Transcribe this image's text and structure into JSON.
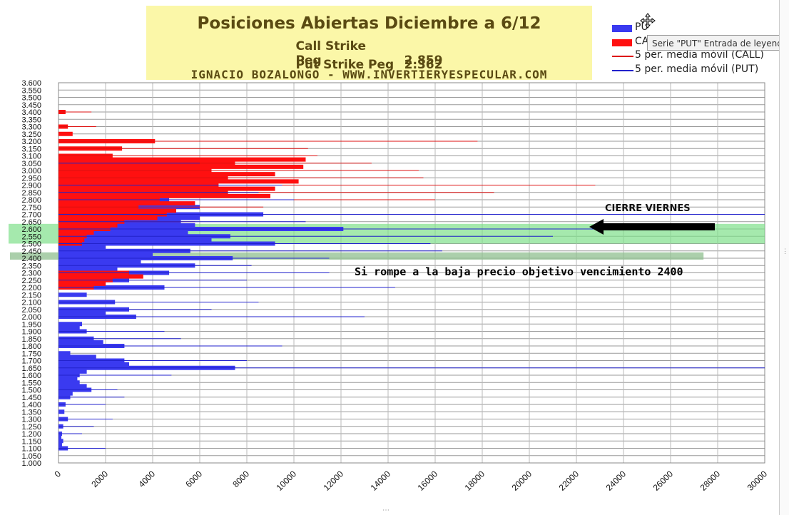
{
  "chart_data": {
    "type": "bar",
    "orientation": "horizontal",
    "title": "Posiciones Abiertas Diciembre a 6/12",
    "call_peg_label": "Call Strike Peg",
    "call_peg_value": "2.859",
    "put_peg_label": "Put Strike Peg",
    "put_peg_value": "2.362",
    "author": "IGNACIO BOZALONGO - WWW.INVERTIERYESPECULAR.COM",
    "xlim": [
      0,
      30000
    ],
    "x_ticks": [
      "0",
      "2000",
      "4000",
      "6000",
      "8000",
      "10000",
      "12000",
      "14000",
      "16000",
      "18000",
      "20000",
      "22000",
      "24000",
      "26000",
      "28000",
      "30000"
    ],
    "ylim": [
      1.0,
      3.6
    ],
    "y_ticks": [
      "3.600",
      "3.550",
      "3.500",
      "3.450",
      "3.400",
      "3.350",
      "3.300",
      "3.250",
      "3.200",
      "3.150",
      "3.100",
      "3.050",
      "3.000",
      "2.950",
      "2.900",
      "2.850",
      "2.800",
      "2.750",
      "2.700",
      "2.650",
      "2.600",
      "2.550",
      "2.500",
      "2.450",
      "2.400",
      "2.350",
      "2.300",
      "2.250",
      "2.200",
      "2.150",
      "2.100",
      "2.050",
      "2.000",
      "1.950",
      "1.900",
      "1.850",
      "1.800",
      "1.750",
      "1.700",
      "1.650",
      "1.600",
      "1.550",
      "1.500",
      "1.450",
      "1.400",
      "1.350",
      "1.300",
      "1.250",
      "1.200",
      "1.150",
      "1.100",
      "1.050",
      "1.000"
    ],
    "grid": true,
    "legend_position": "top-right",
    "legend": [
      "PUT",
      "CALL",
      "5 per. media móvil (CALL)",
      "5 per. media móvil (PUT)"
    ],
    "legend_visible": [
      "PU",
      "CA",
      "5 per. media móvil (CALL)",
      "5 per. media móvil (PUT)"
    ],
    "colors": {
      "put": "#3a3af0",
      "call": "#ff1010",
      "ma_call": "#dd1111",
      "ma_put": "#2222cc",
      "zone": "#7fe08a",
      "zone2": "#8fbf8f"
    },
    "series": [
      {
        "name": "PUT",
        "y": [
          1.1,
          1.125,
          1.15,
          1.175,
          1.2,
          1.25,
          1.3,
          1.35,
          1.4,
          1.45,
          1.475,
          1.5,
          1.525,
          1.55,
          1.575,
          1.6,
          1.625,
          1.65,
          1.675,
          1.7,
          1.725,
          1.75,
          1.8,
          1.825,
          1.85,
          1.9,
          1.925,
          1.95,
          2.0,
          2.025,
          2.05,
          2.1,
          2.15,
          2.2,
          2.225,
          2.25,
          2.275,
          2.3,
          2.325,
          2.35,
          2.375,
          2.4,
          2.425,
          2.45,
          2.475,
          2.5,
          2.525,
          2.55,
          2.575,
          2.6,
          2.625,
          2.65,
          2.675,
          2.7,
          2.725,
          2.75,
          2.8,
          2.825,
          2.85,
          2.875,
          2.9,
          2.95,
          3.0,
          3.05,
          3.1
        ],
        "values": [
          400,
          150,
          200,
          120,
          150,
          200,
          400,
          250,
          300,
          500,
          600,
          1400,
          1200,
          900,
          800,
          900,
          1200,
          7500,
          3000,
          2800,
          1600,
          500,
          2800,
          1900,
          1500,
          1200,
          900,
          1000,
          3300,
          2000,
          3000,
          2400,
          1200,
          4500,
          1400,
          3000,
          2400,
          4700,
          2500,
          5800,
          3500,
          7400,
          4000,
          5600,
          2000,
          9200,
          6500,
          7300,
          5500,
          12100,
          5800,
          5200,
          6000,
          8700,
          5000,
          6000,
          4700,
          3500,
          3000,
          2800,
          2500,
          1500,
          900,
          500,
          300
        ]
      },
      {
        "name": "CALL",
        "y": [
          3.4,
          3.3,
          3.25,
          3.2,
          3.15,
          3.1,
          3.075,
          3.05,
          3.025,
          3.0,
          2.975,
          2.95,
          2.925,
          2.9,
          2.875,
          2.85,
          2.825,
          2.8,
          2.775,
          2.75,
          2.725,
          2.7,
          2.675,
          2.65,
          2.625,
          2.6,
          2.575,
          2.55,
          2.525,
          2.5,
          2.3,
          2.275,
          2.25,
          2.225,
          2.2
        ],
        "values": [
          300,
          400,
          600,
          4100,
          2700,
          2300,
          10500,
          7500,
          10400,
          6500,
          9200,
          7200,
          10200,
          6800,
          9200,
          7200,
          9000,
          4300,
          5800,
          3400,
          5000,
          4600,
          4200,
          2800,
          2500,
          2200,
          1500,
          1200,
          1100,
          1000,
          3000,
          3600,
          2300,
          2000,
          1500
        ]
      },
      {
        "name": "5 per. media móvil (CALL)",
        "y": [
          3.4,
          3.3,
          3.2,
          3.15,
          3.1,
          3.05,
          3.0,
          2.95,
          2.9,
          2.85,
          2.8,
          2.75,
          2.7,
          2.65,
          2.6,
          2.5,
          2.4,
          2.3,
          2.2
        ],
        "values": [
          1400,
          1600,
          17800,
          10600,
          11000,
          13300,
          15300,
          15500,
          22800,
          18500,
          16000,
          8700,
          7000,
          5800,
          4700,
          3200,
          2500,
          1500,
          1000
        ]
      },
      {
        "name": "5 per. media móvil (PUT)",
        "y": [
          3.05,
          2.9,
          2.85,
          2.8,
          2.7,
          2.65,
          2.6,
          2.55,
          2.5,
          2.45,
          2.4,
          2.35,
          2.3,
          2.25,
          2.2,
          2.1,
          2.05,
          2.0,
          1.9,
          1.85,
          1.8,
          1.7,
          1.65,
          1.6,
          1.5,
          1.45,
          1.4,
          1.3,
          1.25,
          1.2,
          1.1
        ],
        "values": [
          6000,
          9500,
          8500,
          10000,
          30000,
          10500,
          27500,
          21000,
          15800,
          16300,
          11500,
          8200,
          11500,
          8000,
          14300,
          8500,
          6500,
          13000,
          4500,
          5200,
          9500,
          8000,
          30000,
          4800,
          2500,
          2800,
          2000,
          2300,
          1500,
          1000,
          2000
        ]
      }
    ],
    "annotations": [
      {
        "text": "CIERRE VIERNES",
        "y": 2.6
      },
      {
        "text": "Si rompe a la baja precio objetivo vencimiento  2400",
        "y": 2.4
      }
    ],
    "highlight_zones": [
      {
        "y_from": 2.5,
        "y_to": 2.635,
        "x_to": 30000
      },
      {
        "y_from": 2.39,
        "y_to": 2.44,
        "x_to": 27400
      }
    ]
  },
  "tooltip": "Serie \"PUT\" Entrada de leyenda"
}
